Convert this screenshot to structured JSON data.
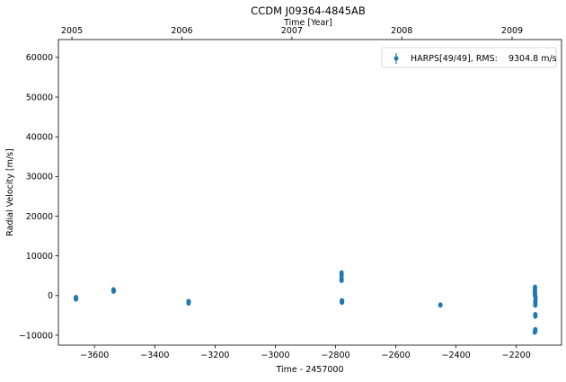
{
  "chart_data": {
    "type": "scatter",
    "title": "CCDM J09364-4845AB",
    "xlabel": "Time - 2457000",
    "ylabel": "Radial Velocity [m/s]",
    "top_xlabel": "Time [Year]",
    "xlim": [
      -3720,
      -2050
    ],
    "ylim": [
      -12500,
      64500
    ],
    "x_ticks": [
      -3600,
      -3400,
      -3200,
      -3000,
      -2800,
      -2600,
      -2400,
      -2200
    ],
    "x_tick_labels": [
      "−3600",
      "−3400",
      "−3200",
      "−3000",
      "−2800",
      "−2600",
      "−2400",
      "−2200"
    ],
    "y_ticks": [
      -10000,
      0,
      10000,
      20000,
      30000,
      40000,
      50000,
      60000
    ],
    "y_tick_labels": [
      "−10000",
      "0",
      "10000",
      "20000",
      "30000",
      "40000",
      "50000",
      "60000"
    ],
    "top_ticks": [
      {
        "label": "2005",
        "x": -3675
      },
      {
        "label": "2006",
        "x": -3310
      },
      {
        "label": "2007",
        "x": -2945
      },
      {
        "label": "2008",
        "x": -2580
      },
      {
        "label": "2009",
        "x": -2214
      }
    ],
    "legend": {
      "label": "HARPS[49/49], RMS:    9304.8 m/s",
      "placement": "top-right"
    },
    "grid": false,
    "series": [
      {
        "name": "HARPS[49/49], RMS:    9304.8 m/s",
        "color": "#1f77b4",
        "points": [
          {
            "x": -3662,
            "y": -400
          },
          {
            "x": -3662,
            "y": -700
          },
          {
            "x": -3662,
            "y": -1000
          },
          {
            "x": -3661,
            "y": -550
          },
          {
            "x": -3661,
            "y": -850
          },
          {
            "x": -3537,
            "y": 1000
          },
          {
            "x": -3537,
            "y": 1300
          },
          {
            "x": -3537,
            "y": 1550
          },
          {
            "x": -3536,
            "y": 1150
          },
          {
            "x": -3288,
            "y": -1400
          },
          {
            "x": -3288,
            "y": -1700
          },
          {
            "x": -3288,
            "y": -2000
          },
          {
            "x": -3287,
            "y": -1550
          },
          {
            "x": -2780,
            "y": 5800
          },
          {
            "x": -2780,
            "y": 5400
          },
          {
            "x": -2780,
            "y": 5000
          },
          {
            "x": -2780,
            "y": 4300
          },
          {
            "x": -2780,
            "y": 4000
          },
          {
            "x": -2780,
            "y": 3700
          },
          {
            "x": -2779,
            "y": -1200
          },
          {
            "x": -2779,
            "y": -1400
          },
          {
            "x": -2779,
            "y": -1600
          },
          {
            "x": -2779,
            "y": -1800
          },
          {
            "x": -2778,
            "y": -1300
          },
          {
            "x": -2778,
            "y": -1700
          },
          {
            "x": -2452,
            "y": -2300
          },
          {
            "x": -2452,
            "y": -2500
          },
          {
            "x": -2138,
            "y": 2200
          },
          {
            "x": -2138,
            "y": 1800
          },
          {
            "x": -2138,
            "y": 1400
          },
          {
            "x": -2138,
            "y": 900
          },
          {
            "x": -2138,
            "y": 500
          },
          {
            "x": -2138,
            "y": 200
          },
          {
            "x": -2138,
            "y": -100
          },
          {
            "x": -2137,
            "y": -1300
          },
          {
            "x": -2137,
            "y": -1600
          },
          {
            "x": -2137,
            "y": -1900
          },
          {
            "x": -2137,
            "y": -2200
          },
          {
            "x": -2137,
            "y": -2500
          },
          {
            "x": -2137,
            "y": -4700
          },
          {
            "x": -2137,
            "y": -5000
          },
          {
            "x": -2137,
            "y": -5300
          },
          {
            "x": -2137,
            "y": -8500
          },
          {
            "x": -2137,
            "y": -8800
          },
          {
            "x": -2137,
            "y": -9100
          },
          {
            "x": -2136,
            "y": -1000
          },
          {
            "x": -2136,
            "y": -400
          },
          {
            "x": -2139,
            "y": 1100
          },
          {
            "x": -2139,
            "y": -9300
          }
        ]
      }
    ]
  }
}
